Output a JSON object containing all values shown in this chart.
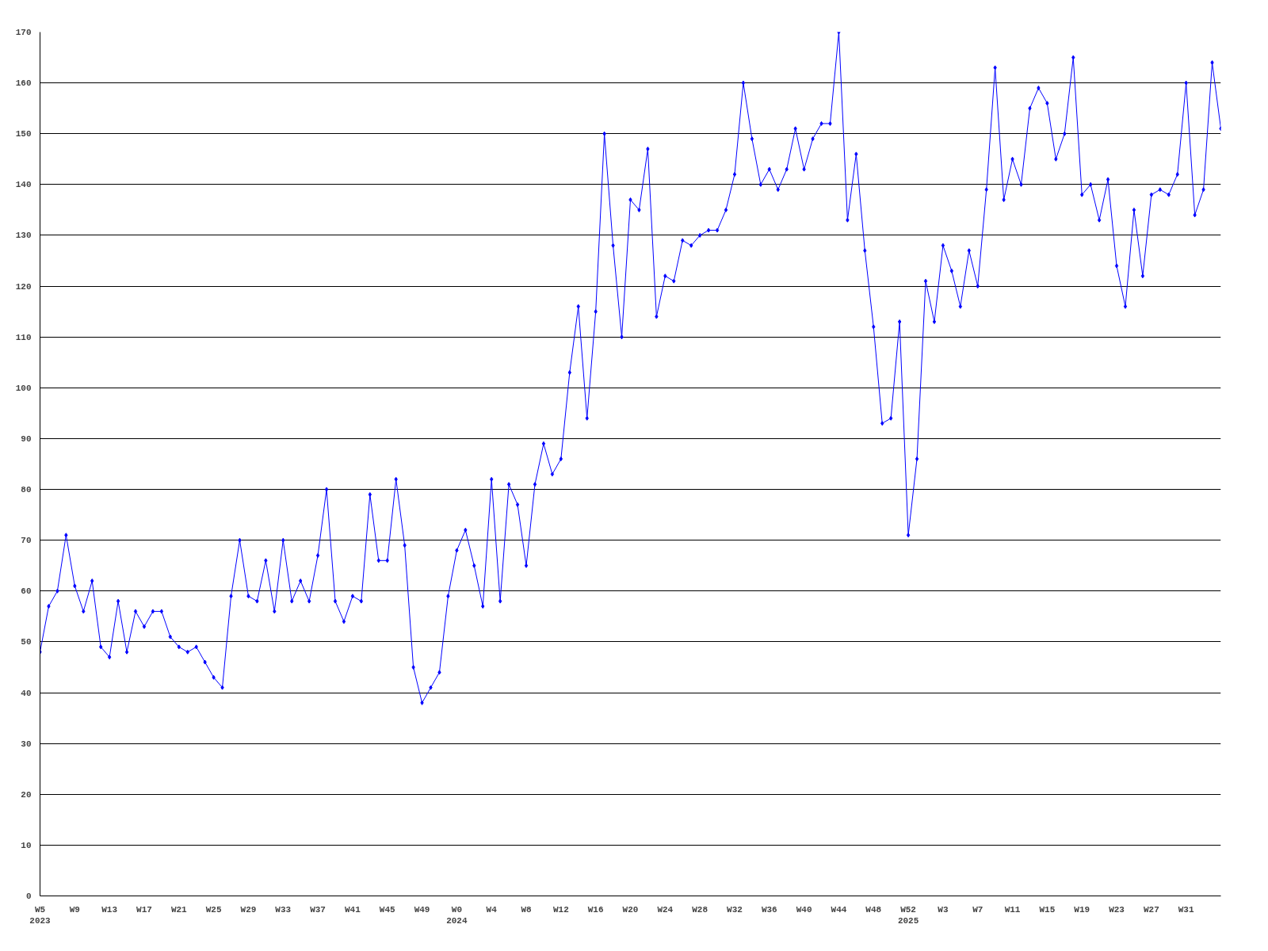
{
  "chart_data": {
    "type": "line",
    "marker": "diamond",
    "line_style": "solid",
    "grid": "y",
    "categories": [
      "W5\n2023",
      null,
      null,
      null,
      "W9",
      null,
      null,
      null,
      "W13",
      null,
      null,
      null,
      "W17",
      null,
      null,
      null,
      "W21",
      null,
      null,
      null,
      "W25",
      null,
      null,
      null,
      "W29",
      null,
      null,
      null,
      "W33",
      null,
      null,
      null,
      "W37",
      null,
      null,
      null,
      "W41",
      null,
      null,
      null,
      "W45",
      null,
      null,
      null,
      "W49",
      null,
      null,
      null,
      "W0\n2024",
      null,
      null,
      null,
      "W4",
      null,
      null,
      null,
      "W8",
      null,
      null,
      null,
      "W12",
      null,
      null,
      null,
      "W16",
      null,
      null,
      null,
      "W20",
      null,
      null,
      null,
      "W24",
      null,
      null,
      null,
      "W28",
      null,
      null,
      null,
      "W32",
      null,
      null,
      null,
      "W36",
      null,
      null,
      null,
      "W40",
      null,
      null,
      null,
      "W44",
      null,
      null,
      null,
      "W48",
      null,
      null,
      null,
      "W52\n2025",
      null,
      null,
      null,
      "W3",
      null,
      null,
      null,
      "W7",
      null,
      null,
      null,
      "W11",
      null,
      null,
      null,
      "W15",
      null,
      null,
      null,
      "W19",
      null,
      null,
      null,
      "W23",
      null,
      null,
      null,
      "W27",
      null,
      null,
      null,
      "W31",
      null,
      null,
      null,
      null
    ],
    "series": [
      {
        "color": "#0000ff",
        "values": [
          48,
          57,
          60,
          71,
          61,
          56,
          62,
          49,
          47,
          58,
          48,
          56,
          53,
          56,
          56,
          51,
          49,
          48,
          49,
          46,
          43,
          41,
          59,
          70,
          59,
          58,
          66,
          56,
          70,
          58,
          62,
          58,
          67,
          80,
          58,
          54,
          59,
          58,
          79,
          66,
          66,
          82,
          69,
          45,
          38,
          41,
          44,
          59,
          68,
          72,
          65,
          57,
          82,
          58,
          81,
          77,
          65,
          81,
          89,
          83,
          86,
          103,
          116,
          94,
          115,
          150,
          128,
          110,
          137,
          135,
          147,
          114,
          122,
          121,
          129,
          128,
          130,
          131,
          131,
          135,
          142,
          160,
          149,
          140,
          143,
          139,
          143,
          151,
          143,
          149,
          152,
          152,
          170,
          133,
          146,
          127,
          112,
          93,
          94,
          113,
          71,
          86,
          121,
          113,
          128,
          123,
          116,
          127,
          120,
          139,
          163,
          137,
          145,
          140,
          155,
          159,
          156,
          145,
          150,
          165,
          138,
          140,
          133,
          141,
          124,
          116,
          135,
          122,
          138,
          139,
          138,
          142,
          160,
          134,
          139,
          164,
          151
        ]
      }
    ],
    "ylim": [
      0,
      170
    ],
    "yticks": [
      0,
      10,
      20,
      30,
      40,
      50,
      60,
      70,
      80,
      90,
      100,
      110,
      120,
      130,
      140,
      150,
      160,
      170
    ]
  }
}
